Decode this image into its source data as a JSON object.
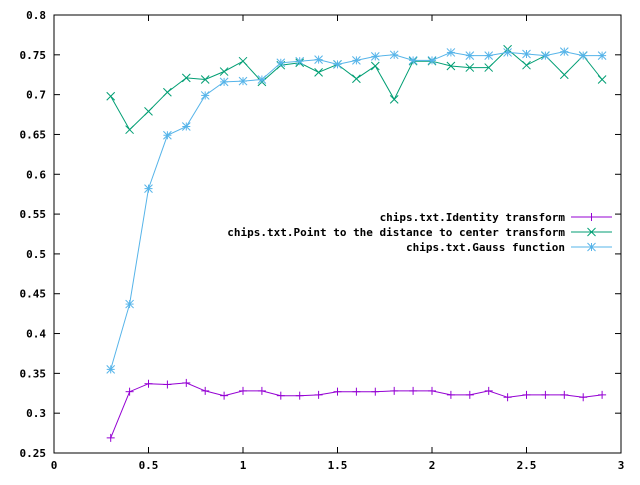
{
  "chart_data": {
    "type": "line",
    "title": "",
    "xlabel": "",
    "ylabel": "",
    "xlim": [
      0,
      3
    ],
    "ylim": [
      0.25,
      0.8
    ],
    "grid": false,
    "legend_position": "right-center",
    "x_ticks": [
      "0",
      "0.5",
      "1",
      "1.5",
      "2",
      "2.5",
      "3"
    ],
    "y_ticks": [
      "0.25",
      "0.3",
      "0.35",
      "0.4",
      "0.45",
      "0.5",
      "0.55",
      "0.6",
      "0.65",
      "0.7",
      "0.75",
      "0.8"
    ],
    "x_tick_values": [
      0,
      0.5,
      1,
      1.5,
      2,
      2.5,
      3
    ],
    "y_tick_values": [
      0.25,
      0.3,
      0.35,
      0.4,
      0.45,
      0.5,
      0.55,
      0.6,
      0.65,
      0.7,
      0.75,
      0.8
    ],
    "x": [
      0.3,
      0.4,
      0.5,
      0.6,
      0.7,
      0.8,
      0.9,
      1.0,
      1.1,
      1.2,
      1.3,
      1.4,
      1.5,
      1.6,
      1.7,
      1.8,
      1.9,
      2.0,
      2.1,
      2.2,
      2.3,
      2.4,
      2.5,
      2.6,
      2.7,
      2.8,
      2.9
    ],
    "series": [
      {
        "name": "chips.txt.Identity transform",
        "color": "#9400d3",
        "marker": "plus",
        "values": [
          0.269,
          0.327,
          0.337,
          0.336,
          0.338,
          0.328,
          0.322,
          0.328,
          0.328,
          0.322,
          0.322,
          0.323,
          0.327,
          0.327,
          0.327,
          0.328,
          0.328,
          0.328,
          0.323,
          0.323,
          0.328,
          0.32,
          0.323,
          0.323,
          0.323,
          0.32,
          0.323
        ]
      },
      {
        "name": "chips.txt.Point to the distance to center transform",
        "color": "#009e73",
        "marker": "cross",
        "values": [
          0.698,
          0.656,
          0.679,
          0.703,
          0.721,
          0.719,
          0.729,
          0.742,
          0.716,
          0.737,
          0.74,
          0.728,
          0.738,
          0.72,
          0.736,
          0.694,
          0.742,
          0.742,
          0.736,
          0.734,
          0.734,
          0.757,
          0.737,
          0.749,
          0.725,
          0.749,
          0.719
        ]
      },
      {
        "name": "chips.txt.Gauss function",
        "color": "#56b4e9",
        "marker": "star",
        "values": [
          0.355,
          0.437,
          0.582,
          0.649,
          0.66,
          0.699,
          0.716,
          0.717,
          0.719,
          0.74,
          0.742,
          0.744,
          0.738,
          0.743,
          0.748,
          0.75,
          0.743,
          0.743,
          0.753,
          0.749,
          0.749,
          0.753,
          0.751,
          0.749,
          0.754,
          0.749,
          0.749
        ]
      }
    ]
  }
}
